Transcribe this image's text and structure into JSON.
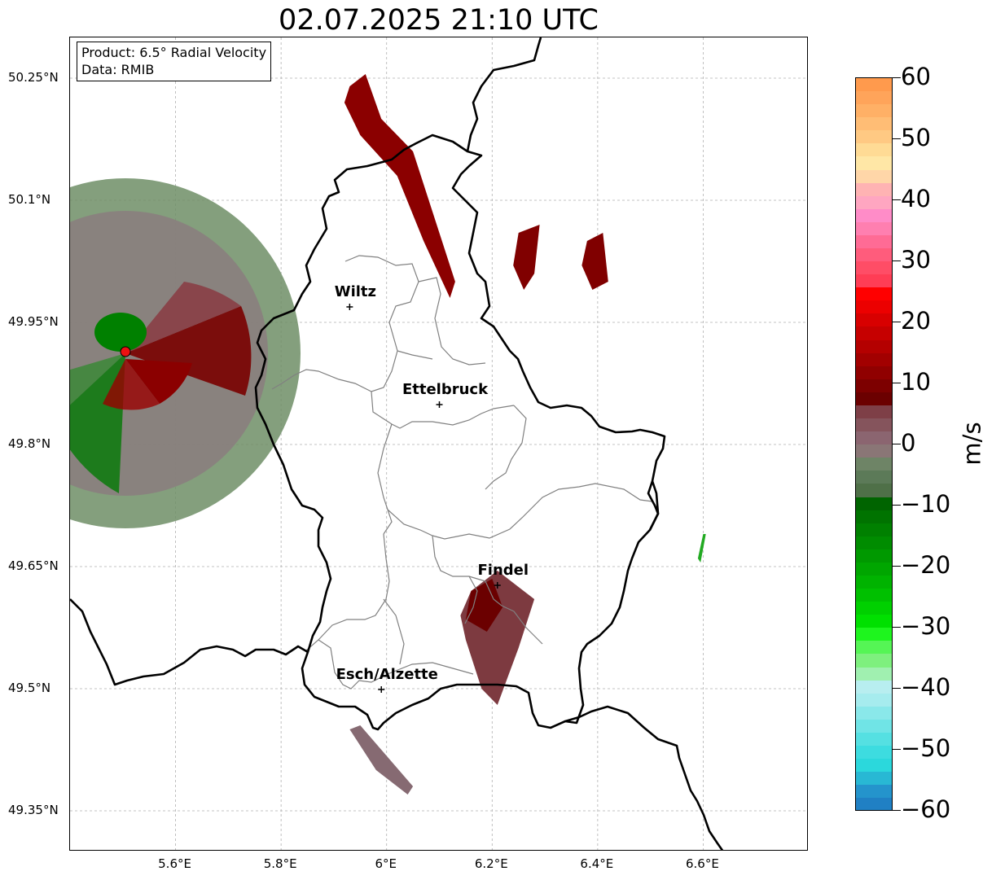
{
  "title": "02.07.2025 21:10 UTC",
  "info": {
    "product": "Product: 6.5° Radial Velocity",
    "source": "Data: RMIB"
  },
  "axes": {
    "lat_labels": [
      "50.25°N",
      "50.1°N",
      "49.95°N",
      "49.8°N",
      "49.65°N",
      "49.5°N",
      "49.35°N"
    ],
    "lat_values": [
      50.25,
      50.1,
      49.95,
      49.8,
      49.65,
      49.5,
      49.35
    ],
    "lon_labels": [
      "5.6°E",
      "5.8°E",
      "6°E",
      "6.2°E",
      "6.4°E",
      "6.6°E"
    ],
    "lon_values": [
      5.6,
      5.8,
      6.0,
      6.2,
      6.4,
      6.6
    ],
    "lon_range": [
      5.4,
      6.8
    ],
    "lat_range": [
      49.3,
      50.3
    ],
    "grid": true
  },
  "cities": [
    {
      "name": "Wiltz",
      "lon": 5.93,
      "lat": 49.969
    },
    {
      "name": "Ettelbruck",
      "lon": 6.1,
      "lat": 49.849
    },
    {
      "name": "Findel",
      "lon": 6.21,
      "lat": 49.627
    },
    {
      "name": "Esch/Alzette",
      "lon": 5.99,
      "lat": 49.499
    }
  ],
  "radar_site": {
    "lon": 5.505,
    "lat": 49.914,
    "color": "#ee1111"
  },
  "colorbar": {
    "unit": "m/s",
    "min": -60,
    "max": 60,
    "tick_labels": [
      "60",
      "50",
      "40",
      "30",
      "20",
      "10",
      "0",
      "−10",
      "−20",
      "−30",
      "−40",
      "−50",
      "−60"
    ],
    "tick_values": [
      60,
      50,
      40,
      30,
      20,
      10,
      0,
      -10,
      -20,
      -30,
      -40,
      -50,
      -60
    ],
    "colors_top_to_bottom": [
      "#ff9a4d",
      "#ffa45a",
      "#ffb066",
      "#ffbd75",
      "#ffc983",
      "#ffdb95",
      "#ffe7a6",
      "#ffd6a8",
      "#ffb3b3",
      "#ffa6c1",
      "#ff8cc8",
      "#ff7fb0",
      "#ff6b95",
      "#ff5c7c",
      "#ff4d66",
      "#ff3d55",
      "#ff0000",
      "#ec0000",
      "#d80000",
      "#c60000",
      "#b40000",
      "#a20000",
      "#900000",
      "#7d0000",
      "#6b0000",
      "#7e3f47",
      "#85545c",
      "#8b6570",
      "#8a7676",
      "#6e8466",
      "#5c7a58",
      "#4f7048",
      "#006400",
      "#007300",
      "#008000",
      "#008c00",
      "#009900",
      "#00a600",
      "#00b300",
      "#00c000",
      "#00d000",
      "#00e000",
      "#1ef51e",
      "#55f555",
      "#7ef07e",
      "#a0f0b0",
      "#b8eef0",
      "#a6ecee",
      "#8ae8ea",
      "#70e4e6",
      "#55e0e2",
      "#3ddce0",
      "#2bd8dc",
      "#28b8d4",
      "#2494cc",
      "#2080c4"
    ]
  },
  "echoes": [
    {
      "name": "north-cell",
      "color": "#8b0000",
      "pts": [
        [
          5.93,
          50.24
        ],
        [
          5.96,
          50.255
        ],
        [
          5.99,
          50.2
        ],
        [
          6.05,
          50.16
        ],
        [
          6.08,
          50.1
        ],
        [
          6.13,
          50.0
        ],
        [
          6.12,
          49.98
        ],
        [
          6.07,
          50.05
        ],
        [
          6.02,
          50.13
        ],
        [
          5.95,
          50.18
        ],
        [
          5.92,
          50.22
        ]
      ]
    },
    {
      "name": "findel-cell",
      "color": "#7d3a40",
      "pts": [
        [
          6.16,
          49.62
        ],
        [
          6.21,
          49.645
        ],
        [
          6.28,
          49.61
        ],
        [
          6.25,
          49.55
        ],
        [
          6.21,
          49.48
        ],
        [
          6.18,
          49.5
        ],
        [
          6.15,
          49.56
        ],
        [
          6.14,
          49.59
        ]
      ]
    },
    {
      "name": "findel-core",
      "color": "#6b0000",
      "pts": [
        [
          6.16,
          49.62
        ],
        [
          6.2,
          49.635
        ],
        [
          6.22,
          49.6
        ],
        [
          6.19,
          49.57
        ],
        [
          6.15,
          49.585
        ]
      ]
    },
    {
      "name": "south-streak",
      "color": "#866a72",
      "pts": [
        [
          5.93,
          49.45
        ],
        [
          5.95,
          49.455
        ],
        [
          6.05,
          49.38
        ],
        [
          6.04,
          49.37
        ],
        [
          5.98,
          49.4
        ]
      ]
    },
    {
      "name": "east-clutter-1",
      "color": "#800000",
      "pts": [
        [
          6.25,
          50.06
        ],
        [
          6.29,
          50.07
        ],
        [
          6.28,
          50.01
        ],
        [
          6.26,
          49.99
        ],
        [
          6.24,
          50.02
        ]
      ]
    },
    {
      "name": "east-clutter-2",
      "color": "#800000",
      "pts": [
        [
          6.38,
          50.05
        ],
        [
          6.41,
          50.06
        ],
        [
          6.42,
          50.0
        ],
        [
          6.39,
          49.99
        ],
        [
          6.37,
          50.02
        ]
      ]
    },
    {
      "name": "green-streak",
      "color": "#22aa22",
      "pts": [
        [
          6.59,
          49.66
        ],
        [
          6.6,
          49.69
        ],
        [
          6.605,
          49.69
        ],
        [
          6.595,
          49.655
        ]
      ]
    }
  ]
}
